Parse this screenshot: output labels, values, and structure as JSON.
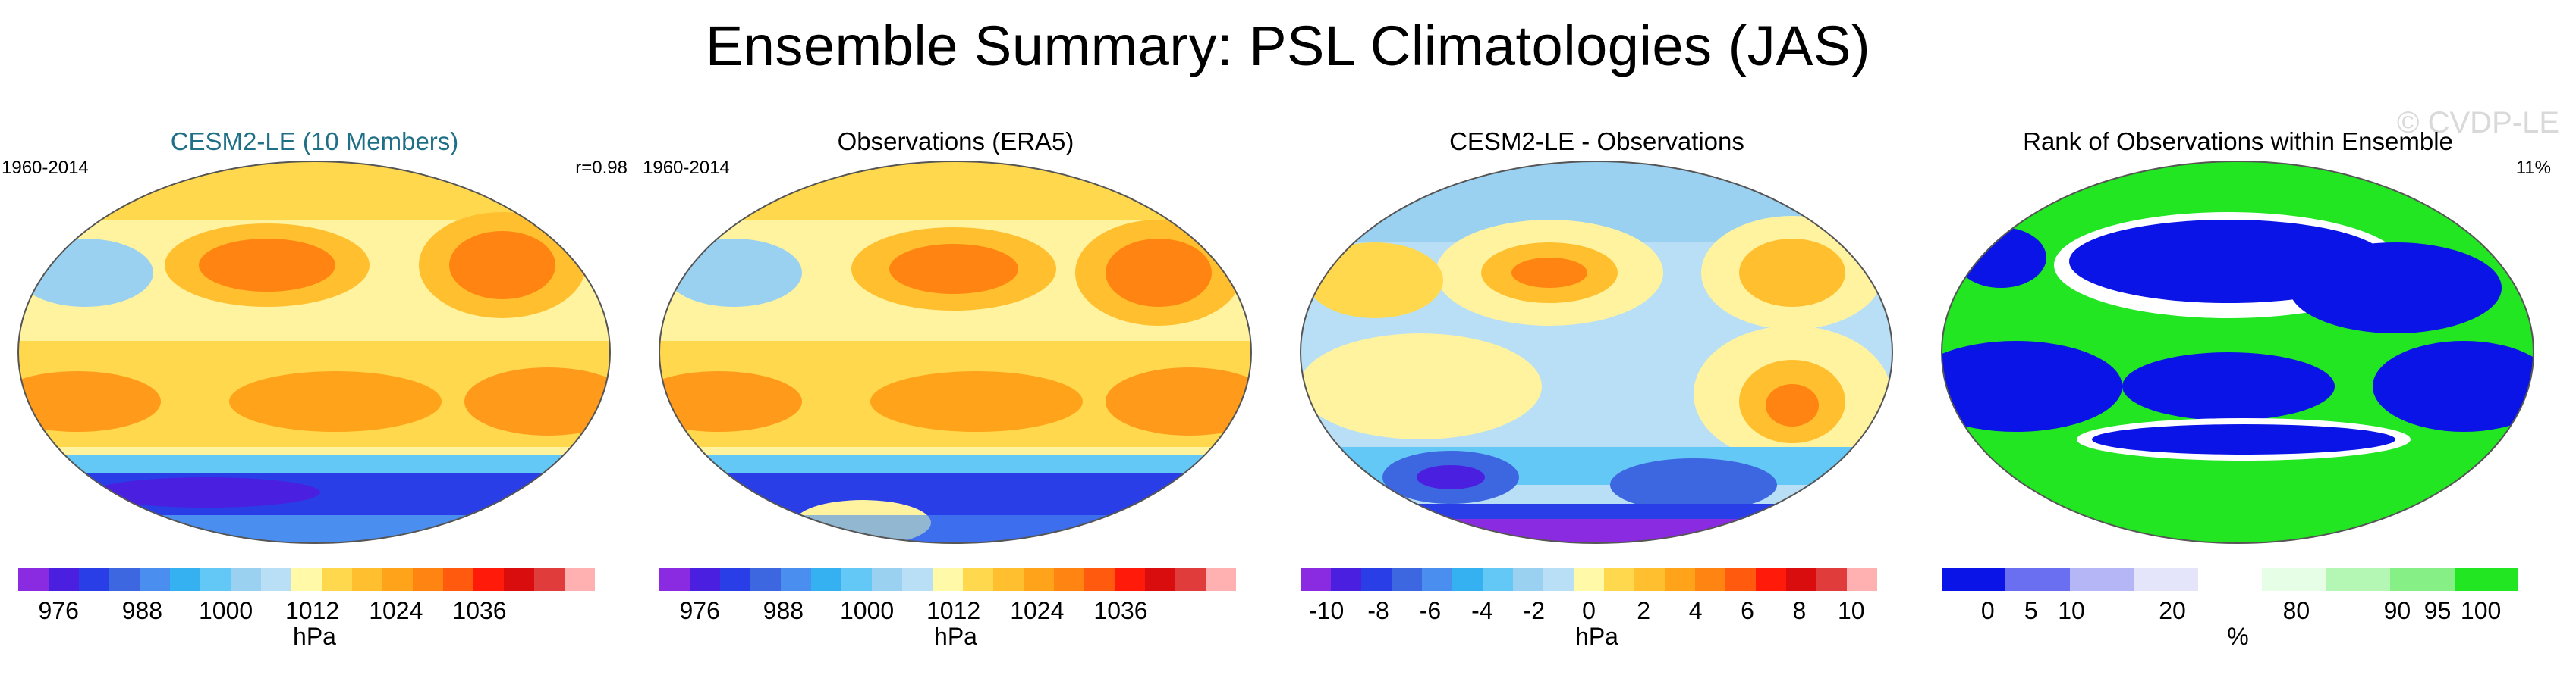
{
  "figure": {
    "title": "Ensemble Summary: PSL Climatologies (JAS)",
    "watermark": "© CVDP-LE"
  },
  "panels": [
    {
      "title": "CESM2-LE (10 Members)",
      "left_label": "1960-2014",
      "right_label": "r=0.98",
      "units": "hPa",
      "ticks": [
        "976",
        "988",
        "1000",
        "1012",
        "1024",
        "1036"
      ],
      "colors": [
        "#8a2be2",
        "#4b1fe0",
        "#2a3ee8",
        "#3d67e0",
        "#4a8ff0",
        "#35b0f0",
        "#63c8f5",
        "#9ad0f0",
        "#b8dff5",
        "#fff9a8",
        "#ffd84d",
        "#ffbf2e",
        "#ffa31a",
        "#ff8412",
        "#ff5a0d",
        "#ff1a0a",
        "#d90d0d",
        "#e03c3c",
        "#ffb0b0"
      ]
    },
    {
      "title": "Observations (ERA5)",
      "left_label": "1960-2014",
      "right_label": "",
      "units": "hPa",
      "ticks": [
        "976",
        "988",
        "1000",
        "1012",
        "1024",
        "1036"
      ],
      "colors": [
        "#8a2be2",
        "#4b1fe0",
        "#2a3ee8",
        "#3d67e0",
        "#4a8ff0",
        "#35b0f0",
        "#63c8f5",
        "#9ad0f0",
        "#b8dff5",
        "#fff9a8",
        "#ffd84d",
        "#ffbf2e",
        "#ffa31a",
        "#ff8412",
        "#ff5a0d",
        "#ff1a0a",
        "#d90d0d",
        "#e03c3c",
        "#ffb0b0"
      ]
    },
    {
      "title": "CESM2-LE - Observations",
      "left_label": "",
      "right_label": "",
      "units": "hPa",
      "ticks": [
        "-10",
        "-8",
        "-6",
        "-4",
        "-2",
        "0",
        "2",
        "4",
        "6",
        "8",
        "10"
      ],
      "colors": [
        "#8a2be2",
        "#4b1fe0",
        "#2a3ee8",
        "#3d67e0",
        "#4a8ff0",
        "#35b0f0",
        "#63c8f5",
        "#9ad0f0",
        "#b8dff5",
        "#fff9a8",
        "#ffd84d",
        "#ffbf2e",
        "#ffa31a",
        "#ff8412",
        "#ff5a0d",
        "#ff1a0a",
        "#d90d0d",
        "#e03c3c",
        "#ffb0b0"
      ]
    },
    {
      "title": "Rank of Observations within Ensemble",
      "left_label": "",
      "right_label": "11%",
      "units": "%",
      "ticks": [
        "0",
        "5",
        "10",
        "20",
        "80",
        "90",
        "95",
        "100"
      ],
      "colors": [
        "#0a14e6",
        "#6a6ef0",
        "#b4b6f5",
        "#e4e5fb",
        "#ffffff",
        "#e6fde6",
        "#b4f7b4",
        "#86f086",
        "#22e622"
      ]
    }
  ]
}
